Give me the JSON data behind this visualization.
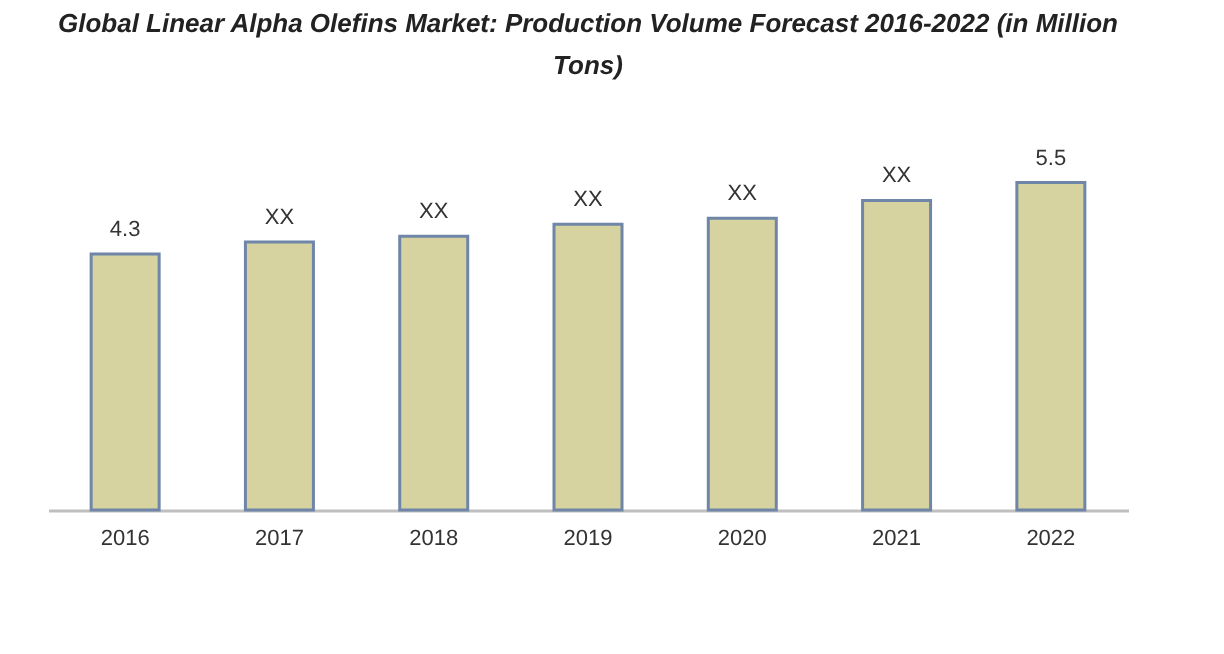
{
  "chart_data": {
    "type": "bar",
    "title": "Global Linear Alpha Olefins Market: Production Volume Forecast 2016-2022 (in Million Tons)",
    "categories": [
      "2016",
      "2017",
      "2018",
      "2019",
      "2020",
      "2021",
      "2022"
    ],
    "values": [
      4.3,
      4.5,
      4.6,
      4.8,
      4.9,
      5.2,
      5.5
    ],
    "value_labels": [
      "4.3",
      "XX",
      "XX",
      "XX",
      "XX",
      "XX",
      "5.5"
    ],
    "color": "#d6d3a0",
    "grid": false
  }
}
